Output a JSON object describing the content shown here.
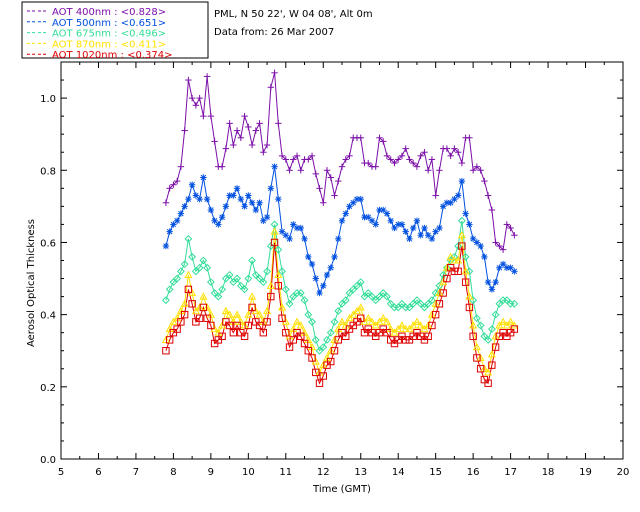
{
  "chart_data": {
    "type": "line",
    "header_lines": [
      "PML, N 50 22', W 04 08', Alt 0m",
      "Data from: 26 Mar 2007"
    ],
    "xlabel": "Time (GMT)",
    "ylabel": "Aerosol Optical Thickness",
    "xlim": [
      5,
      20
    ],
    "ylim": [
      0,
      1.1
    ],
    "xticks": [
      5,
      6,
      7,
      8,
      9,
      10,
      11,
      12,
      13,
      14,
      15,
      16,
      17,
      18,
      19,
      20
    ],
    "yticks": [
      0.0,
      0.2,
      0.4,
      0.6,
      0.8,
      1.0
    ],
    "ytick_labels": [
      "0.0",
      "0.2",
      "0.4",
      "0.6",
      "0.8",
      "1.0"
    ],
    "grid": false,
    "legend_position": "top-left",
    "series": [
      {
        "name": "AOT  400nm : <0.828>",
        "color": "#7b0ea8",
        "marker": "plus",
        "x": [
          7.8,
          7.9,
          8.0,
          8.1,
          8.2,
          8.3,
          8.4,
          8.5,
          8.6,
          8.7,
          8.8,
          8.9,
          9.0,
          9.1,
          9.2,
          9.3,
          9.4,
          9.5,
          9.6,
          9.7,
          9.8,
          9.9,
          10.0,
          10.1,
          10.2,
          10.3,
          10.4,
          10.5,
          10.6,
          10.7,
          10.8,
          10.9,
          11.0,
          11.1,
          11.2,
          11.3,
          11.4,
          11.5,
          11.6,
          11.7,
          11.8,
          11.9,
          12.0,
          12.1,
          12.2,
          12.3,
          12.4,
          12.5,
          12.6,
          12.7,
          12.8,
          12.9,
          13.0,
          13.1,
          13.2,
          13.3,
          13.4,
          13.5,
          13.6,
          13.7,
          13.8,
          13.9,
          14.0,
          14.1,
          14.2,
          14.3,
          14.4,
          14.5,
          14.6,
          14.7,
          14.8,
          14.9,
          15.0,
          15.1,
          15.2,
          15.3,
          15.4,
          15.5,
          15.6,
          15.7,
          15.8,
          15.9,
          16.0,
          16.1,
          16.2,
          16.3,
          16.4,
          16.5,
          16.6,
          16.7,
          16.8,
          16.9,
          17.0,
          17.1
        ],
        "y": [
          0.71,
          0.75,
          0.76,
          0.77,
          0.81,
          0.91,
          1.05,
          1.0,
          0.98,
          1.0,
          0.95,
          1.06,
          0.95,
          0.88,
          0.81,
          0.81,
          0.86,
          0.93,
          0.87,
          0.91,
          0.89,
          0.95,
          0.92,
          0.87,
          0.91,
          0.93,
          0.85,
          0.87,
          1.03,
          1.07,
          0.93,
          0.84,
          0.83,
          0.8,
          0.83,
          0.84,
          0.8,
          0.83,
          0.83,
          0.84,
          0.79,
          0.75,
          0.71,
          0.8,
          0.78,
          0.73,
          0.77,
          0.81,
          0.83,
          0.84,
          0.89,
          0.89,
          0.89,
          0.82,
          0.82,
          0.81,
          0.81,
          0.89,
          0.88,
          0.84,
          0.83,
          0.82,
          0.83,
          0.84,
          0.86,
          0.83,
          0.82,
          0.81,
          0.84,
          0.85,
          0.8,
          0.83,
          0.73,
          0.8,
          0.86,
          0.86,
          0.84,
          0.86,
          0.85,
          0.82,
          0.89,
          0.89,
          0.8,
          0.81,
          0.8,
          0.77,
          0.73,
          0.69,
          0.6,
          0.59,
          0.58,
          0.65,
          0.64,
          0.62
        ]
      },
      {
        "name": "AOT  500nm : <0.651>",
        "color": "#0050e0",
        "marker": "asterisk",
        "x": [
          7.8,
          7.9,
          8.0,
          8.1,
          8.2,
          8.3,
          8.4,
          8.5,
          8.6,
          8.7,
          8.8,
          8.9,
          9.0,
          9.1,
          9.2,
          9.3,
          9.4,
          9.5,
          9.6,
          9.7,
          9.8,
          9.9,
          10.0,
          10.1,
          10.2,
          10.3,
          10.4,
          10.5,
          10.6,
          10.7,
          10.8,
          10.9,
          11.0,
          11.1,
          11.2,
          11.3,
          11.4,
          11.5,
          11.6,
          11.7,
          11.8,
          11.9,
          12.0,
          12.1,
          12.2,
          12.3,
          12.4,
          12.5,
          12.6,
          12.7,
          12.8,
          12.9,
          13.0,
          13.1,
          13.2,
          13.3,
          13.4,
          13.5,
          13.6,
          13.7,
          13.8,
          13.9,
          14.0,
          14.1,
          14.2,
          14.3,
          14.4,
          14.5,
          14.6,
          14.7,
          14.8,
          14.9,
          15.0,
          15.1,
          15.2,
          15.3,
          15.4,
          15.5,
          15.6,
          15.7,
          15.8,
          15.9,
          16.0,
          16.1,
          16.2,
          16.3,
          16.4,
          16.5,
          16.6,
          16.7,
          16.8,
          16.9,
          17.0,
          17.1
        ],
        "y": [
          0.59,
          0.63,
          0.65,
          0.66,
          0.68,
          0.7,
          0.72,
          0.76,
          0.73,
          0.72,
          0.78,
          0.72,
          0.69,
          0.66,
          0.65,
          0.67,
          0.7,
          0.73,
          0.73,
          0.75,
          0.72,
          0.7,
          0.73,
          0.71,
          0.69,
          0.71,
          0.66,
          0.67,
          0.75,
          0.81,
          0.72,
          0.63,
          0.62,
          0.61,
          0.65,
          0.64,
          0.64,
          0.61,
          0.56,
          0.54,
          0.5,
          0.46,
          0.48,
          0.51,
          0.53,
          0.56,
          0.61,
          0.66,
          0.68,
          0.7,
          0.71,
          0.72,
          0.72,
          0.67,
          0.67,
          0.66,
          0.65,
          0.69,
          0.69,
          0.68,
          0.66,
          0.64,
          0.65,
          0.65,
          0.63,
          0.61,
          0.64,
          0.66,
          0.62,
          0.64,
          0.62,
          0.61,
          0.63,
          0.64,
          0.7,
          0.71,
          0.71,
          0.72,
          0.73,
          0.77,
          0.68,
          0.65,
          0.61,
          0.6,
          0.59,
          0.56,
          0.49,
          0.47,
          0.49,
          0.53,
          0.54,
          0.53,
          0.53,
          0.52
        ]
      },
      {
        "name": "AOT  675nm : <0.496>",
        "color": "#33dd99",
        "marker": "diamond",
        "x": [
          7.8,
          7.9,
          8.0,
          8.1,
          8.2,
          8.3,
          8.4,
          8.5,
          8.6,
          8.7,
          8.8,
          8.9,
          9.0,
          9.1,
          9.2,
          9.3,
          9.4,
          9.5,
          9.6,
          9.7,
          9.8,
          9.9,
          10.0,
          10.1,
          10.2,
          10.3,
          10.4,
          10.5,
          10.6,
          10.7,
          10.8,
          10.9,
          11.0,
          11.1,
          11.2,
          11.3,
          11.4,
          11.5,
          11.6,
          11.7,
          11.8,
          11.9,
          12.0,
          12.1,
          12.2,
          12.3,
          12.4,
          12.5,
          12.6,
          12.7,
          12.8,
          12.9,
          13.0,
          13.1,
          13.2,
          13.3,
          13.4,
          13.5,
          13.6,
          13.7,
          13.8,
          13.9,
          14.0,
          14.1,
          14.2,
          14.3,
          14.4,
          14.5,
          14.6,
          14.7,
          14.8,
          14.9,
          15.0,
          15.1,
          15.2,
          15.3,
          15.4,
          15.5,
          15.6,
          15.7,
          15.8,
          15.9,
          16.0,
          16.1,
          16.2,
          16.3,
          16.4,
          16.5,
          16.6,
          16.7,
          16.8,
          16.9,
          17.0,
          17.1
        ],
        "y": [
          0.44,
          0.47,
          0.49,
          0.5,
          0.52,
          0.54,
          0.61,
          0.56,
          0.52,
          0.53,
          0.55,
          0.53,
          0.49,
          0.46,
          0.45,
          0.47,
          0.5,
          0.51,
          0.49,
          0.5,
          0.48,
          0.47,
          0.5,
          0.55,
          0.51,
          0.5,
          0.49,
          0.52,
          0.59,
          0.65,
          0.58,
          0.52,
          0.47,
          0.43,
          0.45,
          0.46,
          0.46,
          0.44,
          0.4,
          0.38,
          0.33,
          0.3,
          0.31,
          0.33,
          0.35,
          0.38,
          0.41,
          0.43,
          0.44,
          0.46,
          0.47,
          0.48,
          0.49,
          0.45,
          0.46,
          0.45,
          0.44,
          0.45,
          0.46,
          0.45,
          0.43,
          0.42,
          0.42,
          0.43,
          0.42,
          0.42,
          0.43,
          0.44,
          0.43,
          0.42,
          0.43,
          0.44,
          0.46,
          0.48,
          0.51,
          0.53,
          0.55,
          0.56,
          0.59,
          0.66,
          0.56,
          0.52,
          0.44,
          0.39,
          0.37,
          0.34,
          0.33,
          0.36,
          0.4,
          0.43,
          0.44,
          0.44,
          0.43,
          0.43
        ]
      },
      {
        "name": "AOT  870nm : <0.411>",
        "color": "#ffe000",
        "marker": "triangle",
        "x": [
          7.8,
          7.9,
          8.0,
          8.1,
          8.2,
          8.3,
          8.4,
          8.5,
          8.6,
          8.7,
          8.8,
          8.9,
          9.0,
          9.1,
          9.2,
          9.3,
          9.4,
          9.5,
          9.6,
          9.7,
          9.8,
          9.9,
          10.0,
          10.1,
          10.2,
          10.3,
          10.4,
          10.5,
          10.6,
          10.7,
          10.8,
          10.9,
          11.0,
          11.1,
          11.2,
          11.3,
          11.4,
          11.5,
          11.6,
          11.7,
          11.8,
          11.9,
          12.0,
          12.1,
          12.2,
          12.3,
          12.4,
          12.5,
          12.6,
          12.7,
          12.8,
          12.9,
          13.0,
          13.1,
          13.2,
          13.3,
          13.4,
          13.5,
          13.6,
          13.7,
          13.8,
          13.9,
          14.0,
          14.1,
          14.2,
          14.3,
          14.4,
          14.5,
          14.6,
          14.7,
          14.8,
          14.9,
          15.0,
          15.1,
          15.2,
          15.3,
          15.4,
          15.5,
          15.6,
          15.7,
          15.8,
          15.9,
          16.0,
          16.1,
          16.2,
          16.3,
          16.4,
          16.5,
          16.6,
          16.7,
          16.8,
          16.9,
          17.0,
          17.1
        ],
        "y": [
          0.33,
          0.36,
          0.38,
          0.39,
          0.41,
          0.43,
          0.51,
          0.46,
          0.41,
          0.42,
          0.45,
          0.42,
          0.4,
          0.36,
          0.35,
          0.37,
          0.41,
          0.4,
          0.38,
          0.4,
          0.38,
          0.37,
          0.4,
          0.45,
          0.41,
          0.4,
          0.38,
          0.41,
          0.48,
          0.63,
          0.51,
          0.42,
          0.38,
          0.34,
          0.36,
          0.38,
          0.37,
          0.35,
          0.33,
          0.31,
          0.27,
          0.24,
          0.26,
          0.28,
          0.3,
          0.33,
          0.36,
          0.38,
          0.37,
          0.39,
          0.4,
          0.41,
          0.42,
          0.38,
          0.39,
          0.38,
          0.37,
          0.38,
          0.39,
          0.38,
          0.36,
          0.35,
          0.36,
          0.37,
          0.36,
          0.36,
          0.37,
          0.38,
          0.37,
          0.36,
          0.37,
          0.4,
          0.43,
          0.46,
          0.49,
          0.53,
          0.56,
          0.55,
          0.55,
          0.62,
          0.52,
          0.45,
          0.37,
          0.31,
          0.28,
          0.25,
          0.24,
          0.29,
          0.34,
          0.37,
          0.38,
          0.37,
          0.38,
          0.37
        ]
      },
      {
        "name": "AOT 1020nm : <0.374>",
        "color": "#dd0000",
        "marker": "square",
        "x": [
          7.8,
          7.9,
          8.0,
          8.1,
          8.2,
          8.3,
          8.4,
          8.5,
          8.6,
          8.7,
          8.8,
          8.9,
          9.0,
          9.1,
          9.2,
          9.3,
          9.4,
          9.5,
          9.6,
          9.7,
          9.8,
          9.9,
          10.0,
          10.1,
          10.2,
          10.3,
          10.4,
          10.5,
          10.6,
          10.7,
          10.8,
          10.9,
          11.0,
          11.1,
          11.2,
          11.3,
          11.4,
          11.5,
          11.6,
          11.7,
          11.8,
          11.9,
          12.0,
          12.1,
          12.2,
          12.3,
          12.4,
          12.5,
          12.6,
          12.7,
          12.8,
          12.9,
          13.0,
          13.1,
          13.2,
          13.3,
          13.4,
          13.5,
          13.6,
          13.7,
          13.8,
          13.9,
          14.0,
          14.1,
          14.2,
          14.3,
          14.4,
          14.5,
          14.6,
          14.7,
          14.8,
          14.9,
          15.0,
          15.1,
          15.2,
          15.3,
          15.4,
          15.5,
          15.6,
          15.7,
          15.8,
          15.9,
          16.0,
          16.1,
          16.2,
          16.3,
          16.4,
          16.5,
          16.6,
          16.7,
          16.8,
          16.9,
          17.0,
          17.1
        ],
        "y": [
          0.3,
          0.33,
          0.35,
          0.36,
          0.38,
          0.4,
          0.47,
          0.43,
          0.38,
          0.39,
          0.42,
          0.39,
          0.37,
          0.32,
          0.33,
          0.34,
          0.38,
          0.37,
          0.35,
          0.37,
          0.35,
          0.34,
          0.37,
          0.42,
          0.38,
          0.37,
          0.35,
          0.38,
          0.45,
          0.6,
          0.48,
          0.39,
          0.35,
          0.31,
          0.33,
          0.35,
          0.34,
          0.32,
          0.3,
          0.28,
          0.24,
          0.21,
          0.23,
          0.26,
          0.27,
          0.3,
          0.33,
          0.35,
          0.34,
          0.36,
          0.37,
          0.38,
          0.39,
          0.35,
          0.36,
          0.35,
          0.34,
          0.35,
          0.36,
          0.35,
          0.33,
          0.32,
          0.33,
          0.34,
          0.33,
          0.33,
          0.34,
          0.35,
          0.34,
          0.33,
          0.34,
          0.37,
          0.4,
          0.43,
          0.46,
          0.5,
          0.53,
          0.52,
          0.52,
          0.59,
          0.49,
          0.42,
          0.34,
          0.28,
          0.25,
          0.22,
          0.21,
          0.26,
          0.31,
          0.34,
          0.35,
          0.34,
          0.35,
          0.36
        ]
      }
    ]
  }
}
